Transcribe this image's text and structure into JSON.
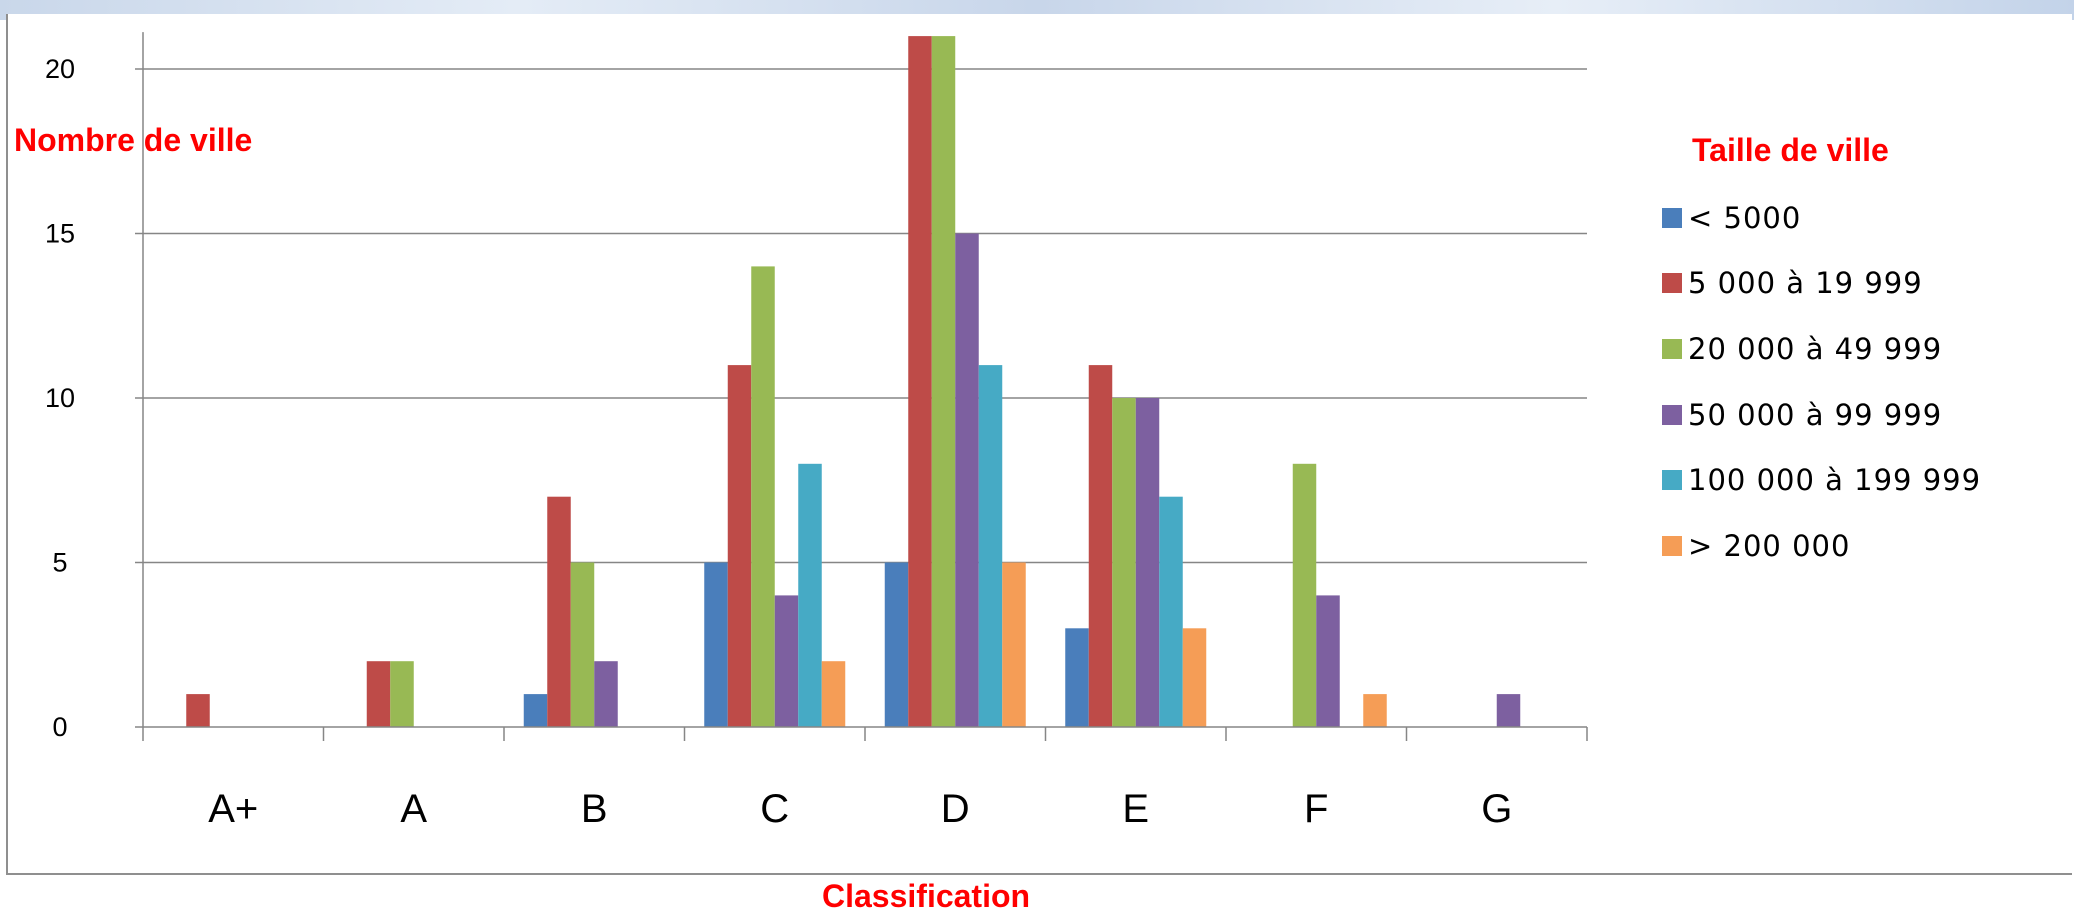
{
  "chart_data": {
    "type": "bar",
    "ylabel": "Nombre de ville",
    "xlabel": "Classification",
    "legend_title": "Taille de ville",
    "legend_position": "right",
    "grid": "horizontal",
    "categories": [
      "A+",
      "A",
      "B",
      "C",
      "D",
      "E",
      "F",
      "G"
    ],
    "y_ticks": [
      0,
      5,
      10,
      15,
      20
    ],
    "ylim": [
      0,
      21
    ],
    "series": [
      {
        "name": "< 5000",
        "color": "#4a7ebb",
        "values": [
          0,
          0,
          1,
          5,
          5,
          3,
          0,
          0
        ]
      },
      {
        "name": "5 000 à 19 999",
        "color": "#be4b48",
        "values": [
          1,
          2,
          7,
          11,
          21,
          11,
          0,
          0
        ]
      },
      {
        "name": "20 000 à 49 999",
        "color": "#98b954",
        "values": [
          0,
          2,
          5,
          14,
          21,
          10,
          8,
          0
        ]
      },
      {
        "name": "50 000 à 99 999",
        "color": "#7d60a0",
        "values": [
          0,
          0,
          2,
          4,
          15,
          10,
          4,
          1
        ]
      },
      {
        "name": "100 000 à 199 999",
        "color": "#46aac5",
        "values": [
          0,
          0,
          0,
          8,
          11,
          7,
          0,
          0
        ]
      },
      {
        "name": "> 200 000",
        "color": "#f59d56",
        "values": [
          0,
          0,
          0,
          2,
          5,
          3,
          1,
          0
        ]
      }
    ]
  }
}
